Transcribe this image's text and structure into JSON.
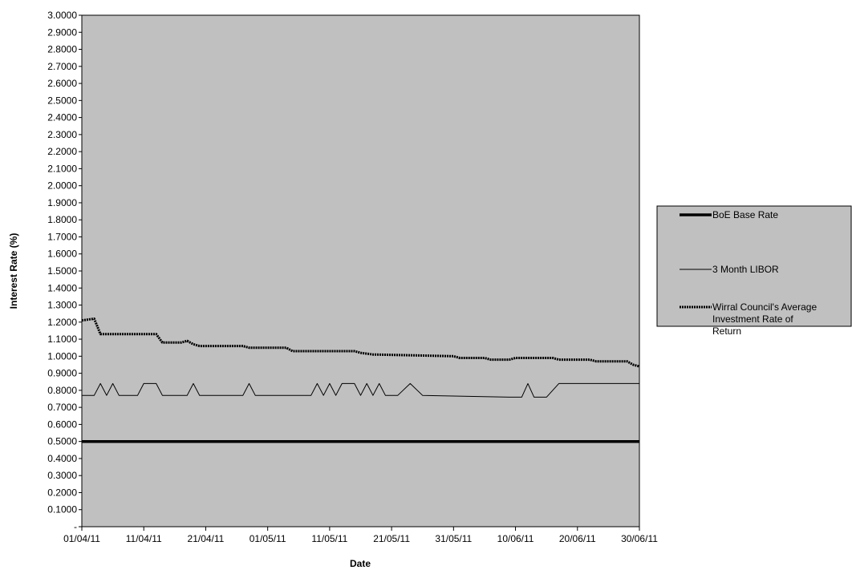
{
  "colors": {
    "plot_background": "#c0c0c0",
    "legend_background": "#c0c0c0",
    "boe": "#000000",
    "libor": "#000000",
    "wirral": "#000000"
  },
  "chart_data": {
    "type": "line",
    "title": "",
    "xlabel": "Date",
    "ylabel": "Interest Rate (%)",
    "ylim": [
      0,
      3.0
    ],
    "y_ticks": [
      {
        "value": 0.0,
        "label": "-"
      },
      {
        "value": 0.1,
        "label": "0.1000"
      },
      {
        "value": 0.2,
        "label": "0.2000"
      },
      {
        "value": 0.3,
        "label": "0.3000"
      },
      {
        "value": 0.4,
        "label": "0.4000"
      },
      {
        "value": 0.5,
        "label": "0.5000"
      },
      {
        "value": 0.6,
        "label": "0.6000"
      },
      {
        "value": 0.7,
        "label": "0.7000"
      },
      {
        "value": 0.8,
        "label": "0.8000"
      },
      {
        "value": 0.9,
        "label": "0.9000"
      },
      {
        "value": 1.0,
        "label": "1.0000"
      },
      {
        "value": 1.1,
        "label": "1.1000"
      },
      {
        "value": 1.2,
        "label": "1.2000"
      },
      {
        "value": 1.3,
        "label": "1.3000"
      },
      {
        "value": 1.4,
        "label": "1.4000"
      },
      {
        "value": 1.5,
        "label": "1.5000"
      },
      {
        "value": 1.6,
        "label": "1.6000"
      },
      {
        "value": 1.7,
        "label": "1.7000"
      },
      {
        "value": 1.8,
        "label": "1.8000"
      },
      {
        "value": 1.9,
        "label": "1.9000"
      },
      {
        "value": 2.0,
        "label": "2.0000"
      },
      {
        "value": 2.1,
        "label": "2.1000"
      },
      {
        "value": 2.2,
        "label": "2.2000"
      },
      {
        "value": 2.3,
        "label": "2.3000"
      },
      {
        "value": 2.4,
        "label": "2.4000"
      },
      {
        "value": 2.5,
        "label": "2.5000"
      },
      {
        "value": 2.6,
        "label": "2.6000"
      },
      {
        "value": 2.7,
        "label": "2.7000"
      },
      {
        "value": 2.8,
        "label": "2.8000"
      },
      {
        "value": 2.9,
        "label": "2.9000"
      },
      {
        "value": 3.0,
        "label": "3.0000"
      }
    ],
    "x_range": [
      "01/04/11",
      "30/06/11"
    ],
    "x_ticks": [
      "01/04/11",
      "11/04/11",
      "21/04/11",
      "01/05/11",
      "11/05/11",
      "21/05/11",
      "31/05/11",
      "10/06/11",
      "20/06/11",
      "30/06/11"
    ],
    "grid": false,
    "legend_position": "right",
    "series": [
      {
        "name": "BoE Base Rate",
        "style": "thick",
        "points": [
          [
            "01/04/11",
            0.5
          ],
          [
            "30/06/11",
            0.5
          ]
        ]
      },
      {
        "name": "3 Month LIBOR",
        "style": "thin",
        "points": [
          [
            "01/04/11",
            0.77
          ],
          [
            "03/04/11",
            0.77
          ],
          [
            "04/04/11",
            0.84
          ],
          [
            "05/04/11",
            0.77
          ],
          [
            "06/04/11",
            0.84
          ],
          [
            "07/04/11",
            0.77
          ],
          [
            "10/04/11",
            0.77
          ],
          [
            "11/04/11",
            0.84
          ],
          [
            "13/04/11",
            0.84
          ],
          [
            "14/04/11",
            0.77
          ],
          [
            "18/04/11",
            0.77
          ],
          [
            "19/04/11",
            0.84
          ],
          [
            "20/04/11",
            0.77
          ],
          [
            "27/04/11",
            0.77
          ],
          [
            "28/04/11",
            0.84
          ],
          [
            "29/04/11",
            0.77
          ],
          [
            "08/05/11",
            0.77
          ],
          [
            "09/05/11",
            0.84
          ],
          [
            "10/05/11",
            0.77
          ],
          [
            "11/05/11",
            0.84
          ],
          [
            "12/05/11",
            0.77
          ],
          [
            "13/05/11",
            0.84
          ],
          [
            "15/05/11",
            0.84
          ],
          [
            "16/05/11",
            0.77
          ],
          [
            "17/05/11",
            0.84
          ],
          [
            "18/05/11",
            0.77
          ],
          [
            "19/05/11",
            0.84
          ],
          [
            "20/05/11",
            0.77
          ],
          [
            "22/05/11",
            0.77
          ],
          [
            "24/05/11",
            0.84
          ],
          [
            "26/05/11",
            0.77
          ],
          [
            "09/06/11",
            0.76
          ],
          [
            "11/06/11",
            0.76
          ],
          [
            "12/06/11",
            0.84
          ],
          [
            "13/06/11",
            0.76
          ],
          [
            "15/06/11",
            0.76
          ],
          [
            "17/06/11",
            0.84
          ],
          [
            "30/06/11",
            0.84
          ]
        ]
      },
      {
        "name": "Wirral Council's Average Investment Rate of Return",
        "style": "dotted",
        "points": [
          [
            "01/04/11",
            1.21
          ],
          [
            "03/04/11",
            1.22
          ],
          [
            "04/04/11",
            1.13
          ],
          [
            "13/04/11",
            1.13
          ],
          [
            "14/04/11",
            1.08
          ],
          [
            "17/04/11",
            1.08
          ],
          [
            "18/04/11",
            1.09
          ],
          [
            "19/04/11",
            1.07
          ],
          [
            "20/04/11",
            1.06
          ],
          [
            "27/04/11",
            1.06
          ],
          [
            "28/04/11",
            1.05
          ],
          [
            "04/05/11",
            1.05
          ],
          [
            "05/05/11",
            1.03
          ],
          [
            "15/05/11",
            1.03
          ],
          [
            "16/05/11",
            1.02
          ],
          [
            "18/05/11",
            1.01
          ],
          [
            "31/05/11",
            1.0
          ],
          [
            "01/06/11",
            0.99
          ],
          [
            "05/06/11",
            0.99
          ],
          [
            "06/06/11",
            0.98
          ],
          [
            "09/06/11",
            0.98
          ],
          [
            "10/06/11",
            0.99
          ],
          [
            "16/06/11",
            0.99
          ],
          [
            "17/06/11",
            0.98
          ],
          [
            "22/06/11",
            0.98
          ],
          [
            "23/06/11",
            0.97
          ],
          [
            "28/06/11",
            0.97
          ],
          [
            "29/06/11",
            0.95
          ],
          [
            "30/06/11",
            0.94
          ]
        ]
      }
    ]
  }
}
